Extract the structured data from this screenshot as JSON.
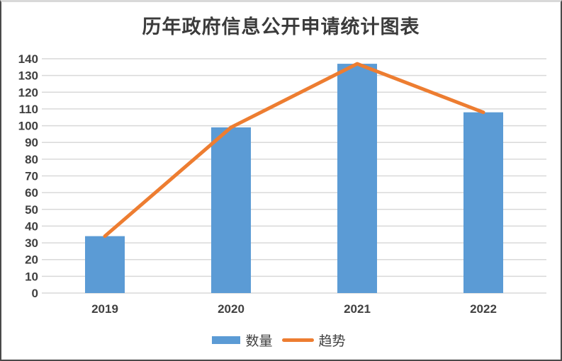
{
  "title": "历年政府信息公开申请统计图表",
  "colors": {
    "bar": "#5B9BD5",
    "line": "#ED7D31",
    "grid": "#D9D9D9",
    "axis_text": "#404040",
    "title_text": "#3B3B3B",
    "frame_top": "#D9D9D9",
    "frame_sides": "#4A4A4A",
    "background": "#FFFFFF"
  },
  "chart_data": {
    "type": "bar",
    "title": "历年政府信息公开申请统计图表",
    "categories": [
      "2019",
      "2020",
      "2021",
      "2022"
    ],
    "series": [
      {
        "name": "数量",
        "kind": "bar",
        "color": "#5B9BD5",
        "values": [
          34,
          99,
          137,
          108
        ]
      },
      {
        "name": "趋势",
        "kind": "line",
        "color": "#ED7D31",
        "values": [
          34,
          99,
          137,
          108
        ]
      }
    ],
    "xlabel": "",
    "ylabel": "",
    "ylim": [
      0,
      140
    ],
    "ytick_step": 10,
    "grid": true,
    "legend_position": "bottom"
  },
  "legend": {
    "bar_label": "数量",
    "line_label": "趋势"
  }
}
